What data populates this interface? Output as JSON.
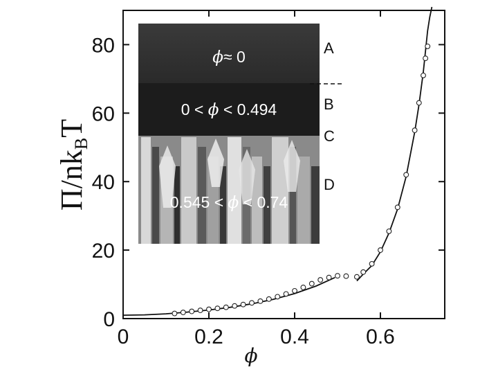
{
  "chart_data": {
    "type": "scatter",
    "xlabel": "ϕ",
    "ylabel": "Π/nk",
    "ylabel_sub": "B",
    "ylabel_tail": "T",
    "xlim": [
      0,
      0.75
    ],
    "ylim": [
      0,
      90
    ],
    "x_ticks": [
      0,
      0.2,
      0.4,
      0.6
    ],
    "x_tick_labels": [
      "0",
      "0.2",
      "0.4",
      "0.6"
    ],
    "y_ticks": [
      0,
      20,
      40,
      60,
      80
    ],
    "y_tick_labels": [
      "0",
      "20",
      "40",
      "60",
      "80"
    ],
    "grid": false,
    "series": [
      {
        "kind": "points",
        "marker": "open-circle",
        "x": [
          0.12,
          0.14,
          0.16,
          0.18,
          0.2,
          0.22,
          0.24,
          0.26,
          0.28,
          0.3,
          0.32,
          0.34,
          0.36,
          0.38,
          0.4,
          0.42,
          0.44,
          0.46,
          0.48,
          0.5,
          0.52,
          0.545,
          0.56,
          0.58,
          0.6,
          0.62,
          0.64,
          0.66,
          0.68,
          0.69,
          0.7,
          0.705,
          0.71
        ],
        "y": [
          1.5,
          1.8,
          2.1,
          2.4,
          2.7,
          3.0,
          3.3,
          3.7,
          4.1,
          4.6,
          5.1,
          5.7,
          6.4,
          7.2,
          8.1,
          9.1,
          10.2,
          11.3,
          12.0,
          12.5,
          12.4,
          12.2,
          13.6,
          16.0,
          20.0,
          25.5,
          32.5,
          42.0,
          55.0,
          63.0,
          71.0,
          76.0,
          79.5
        ]
      },
      {
        "kind": "line",
        "branch": "fluid",
        "x": [
          0.0,
          0.05,
          0.1,
          0.15,
          0.2,
          0.25,
          0.3,
          0.35,
          0.4,
          0.45,
          0.494
        ],
        "y": [
          1.0,
          1.1,
          1.4,
          1.9,
          2.5,
          3.3,
          4.3,
          5.6,
          7.3,
          9.5,
          12.0
        ]
      },
      {
        "kind": "line",
        "branch": "solid",
        "x": [
          0.545,
          0.56,
          0.58,
          0.6,
          0.62,
          0.64,
          0.66,
          0.68,
          0.69,
          0.7,
          0.71,
          0.715,
          0.72
        ],
        "y": [
          11.0,
          13.0,
          15.5,
          19.5,
          25.0,
          32.0,
          41.5,
          54.5,
          62.5,
          72.0,
          84.0,
          88.0,
          92.0
        ]
      }
    ],
    "inset": {
      "zones": [
        {
          "letter": "A",
          "label_before": "",
          "symbol": "ϕ",
          "label_after": "≈ 0"
        },
        {
          "letter": "B",
          "label_before": "0 < ",
          "symbol": "ϕ",
          "label_after": " < 0.494"
        },
        {
          "letter": "C",
          "label_before": "",
          "symbol": "",
          "label_after": ""
        },
        {
          "letter": "D",
          "label_before": "0.545 < ",
          "symbol": "ϕ",
          "label_after": " < 0.74"
        }
      ],
      "colors": {
        "zone_a": "#2b2b2b",
        "zone_b": "#1e1e1e",
        "zone_d_base": "#8a8a8a"
      }
    }
  }
}
